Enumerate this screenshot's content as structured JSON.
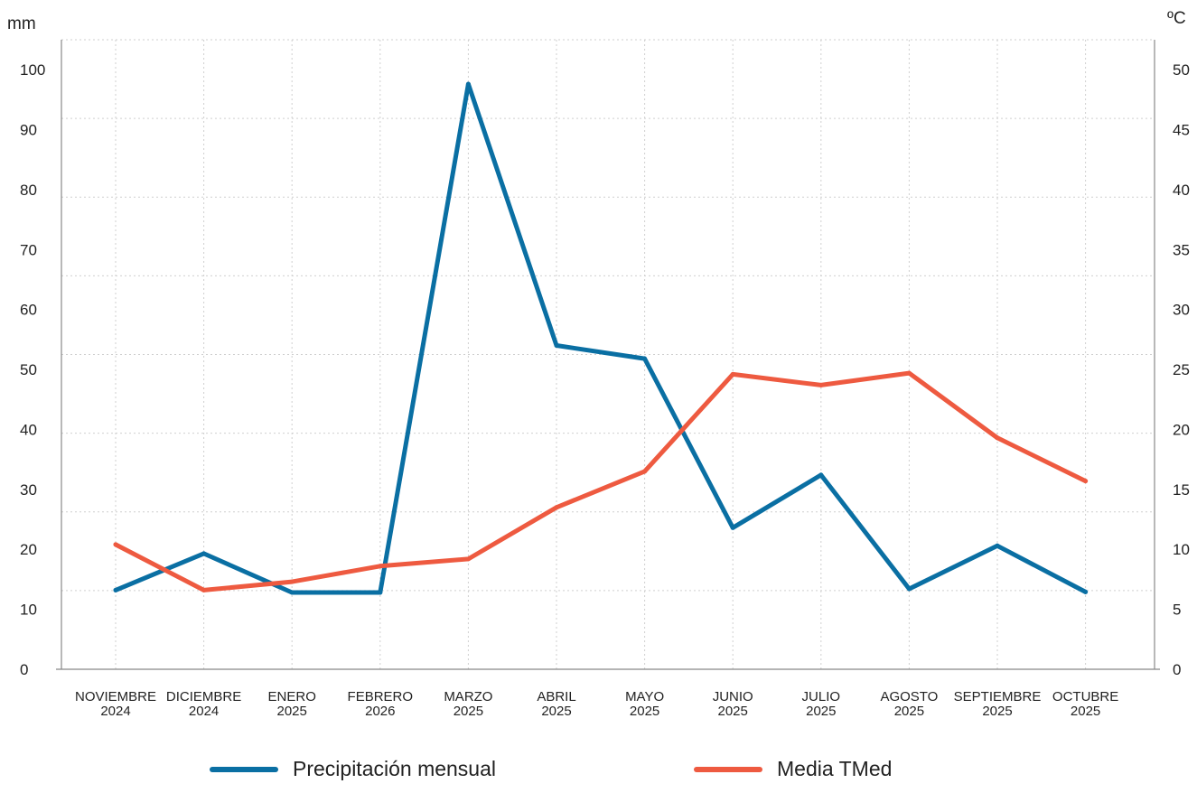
{
  "chart_data": {
    "type": "line",
    "categories": [
      [
        "NOVIEMBRE",
        "2024"
      ],
      [
        "DICIEMBRE",
        "2024"
      ],
      [
        "ENERO",
        "2025"
      ],
      [
        "FEBRERO",
        "2026"
      ],
      [
        "MARZO",
        "2025"
      ],
      [
        "ABRIL",
        "2025"
      ],
      [
        "MAYO",
        "2025"
      ],
      [
        "JUNIO",
        "2025"
      ],
      [
        "JULIO",
        "2025"
      ],
      [
        "AGOSTO",
        "2025"
      ],
      [
        "SEPTIEMBRE",
        "2025"
      ],
      [
        "OCTUBRE",
        "2025"
      ]
    ],
    "y_left": {
      "label": "mm",
      "ticks": [
        0,
        10,
        20,
        30,
        40,
        50,
        60,
        70,
        80,
        90,
        100
      ],
      "range": [
        0,
        105
      ]
    },
    "y_right": {
      "label": "ºC",
      "ticks": [
        0,
        5,
        10,
        15,
        20,
        25,
        30,
        35,
        40,
        45,
        50
      ],
      "range": [
        0,
        52.5
      ]
    },
    "series": [
      {
        "name": "Precipitación mensual",
        "axis": "left",
        "color": "#0a6fa3",
        "values": [
          13.2,
          19.3,
          12.8,
          12.8,
          97.6,
          54.0,
          51.8,
          23.6,
          32.4,
          13.4,
          20.6,
          12.9
        ]
      },
      {
        "name": "Media TMed",
        "axis": "right",
        "color": "#ee5a40",
        "values": [
          10.4,
          6.6,
          7.3,
          8.6,
          9.2,
          13.5,
          16.5,
          24.6,
          23.7,
          24.7,
          19.3,
          15.7
        ]
      }
    ],
    "grid": true,
    "legend_position": "bottom"
  }
}
